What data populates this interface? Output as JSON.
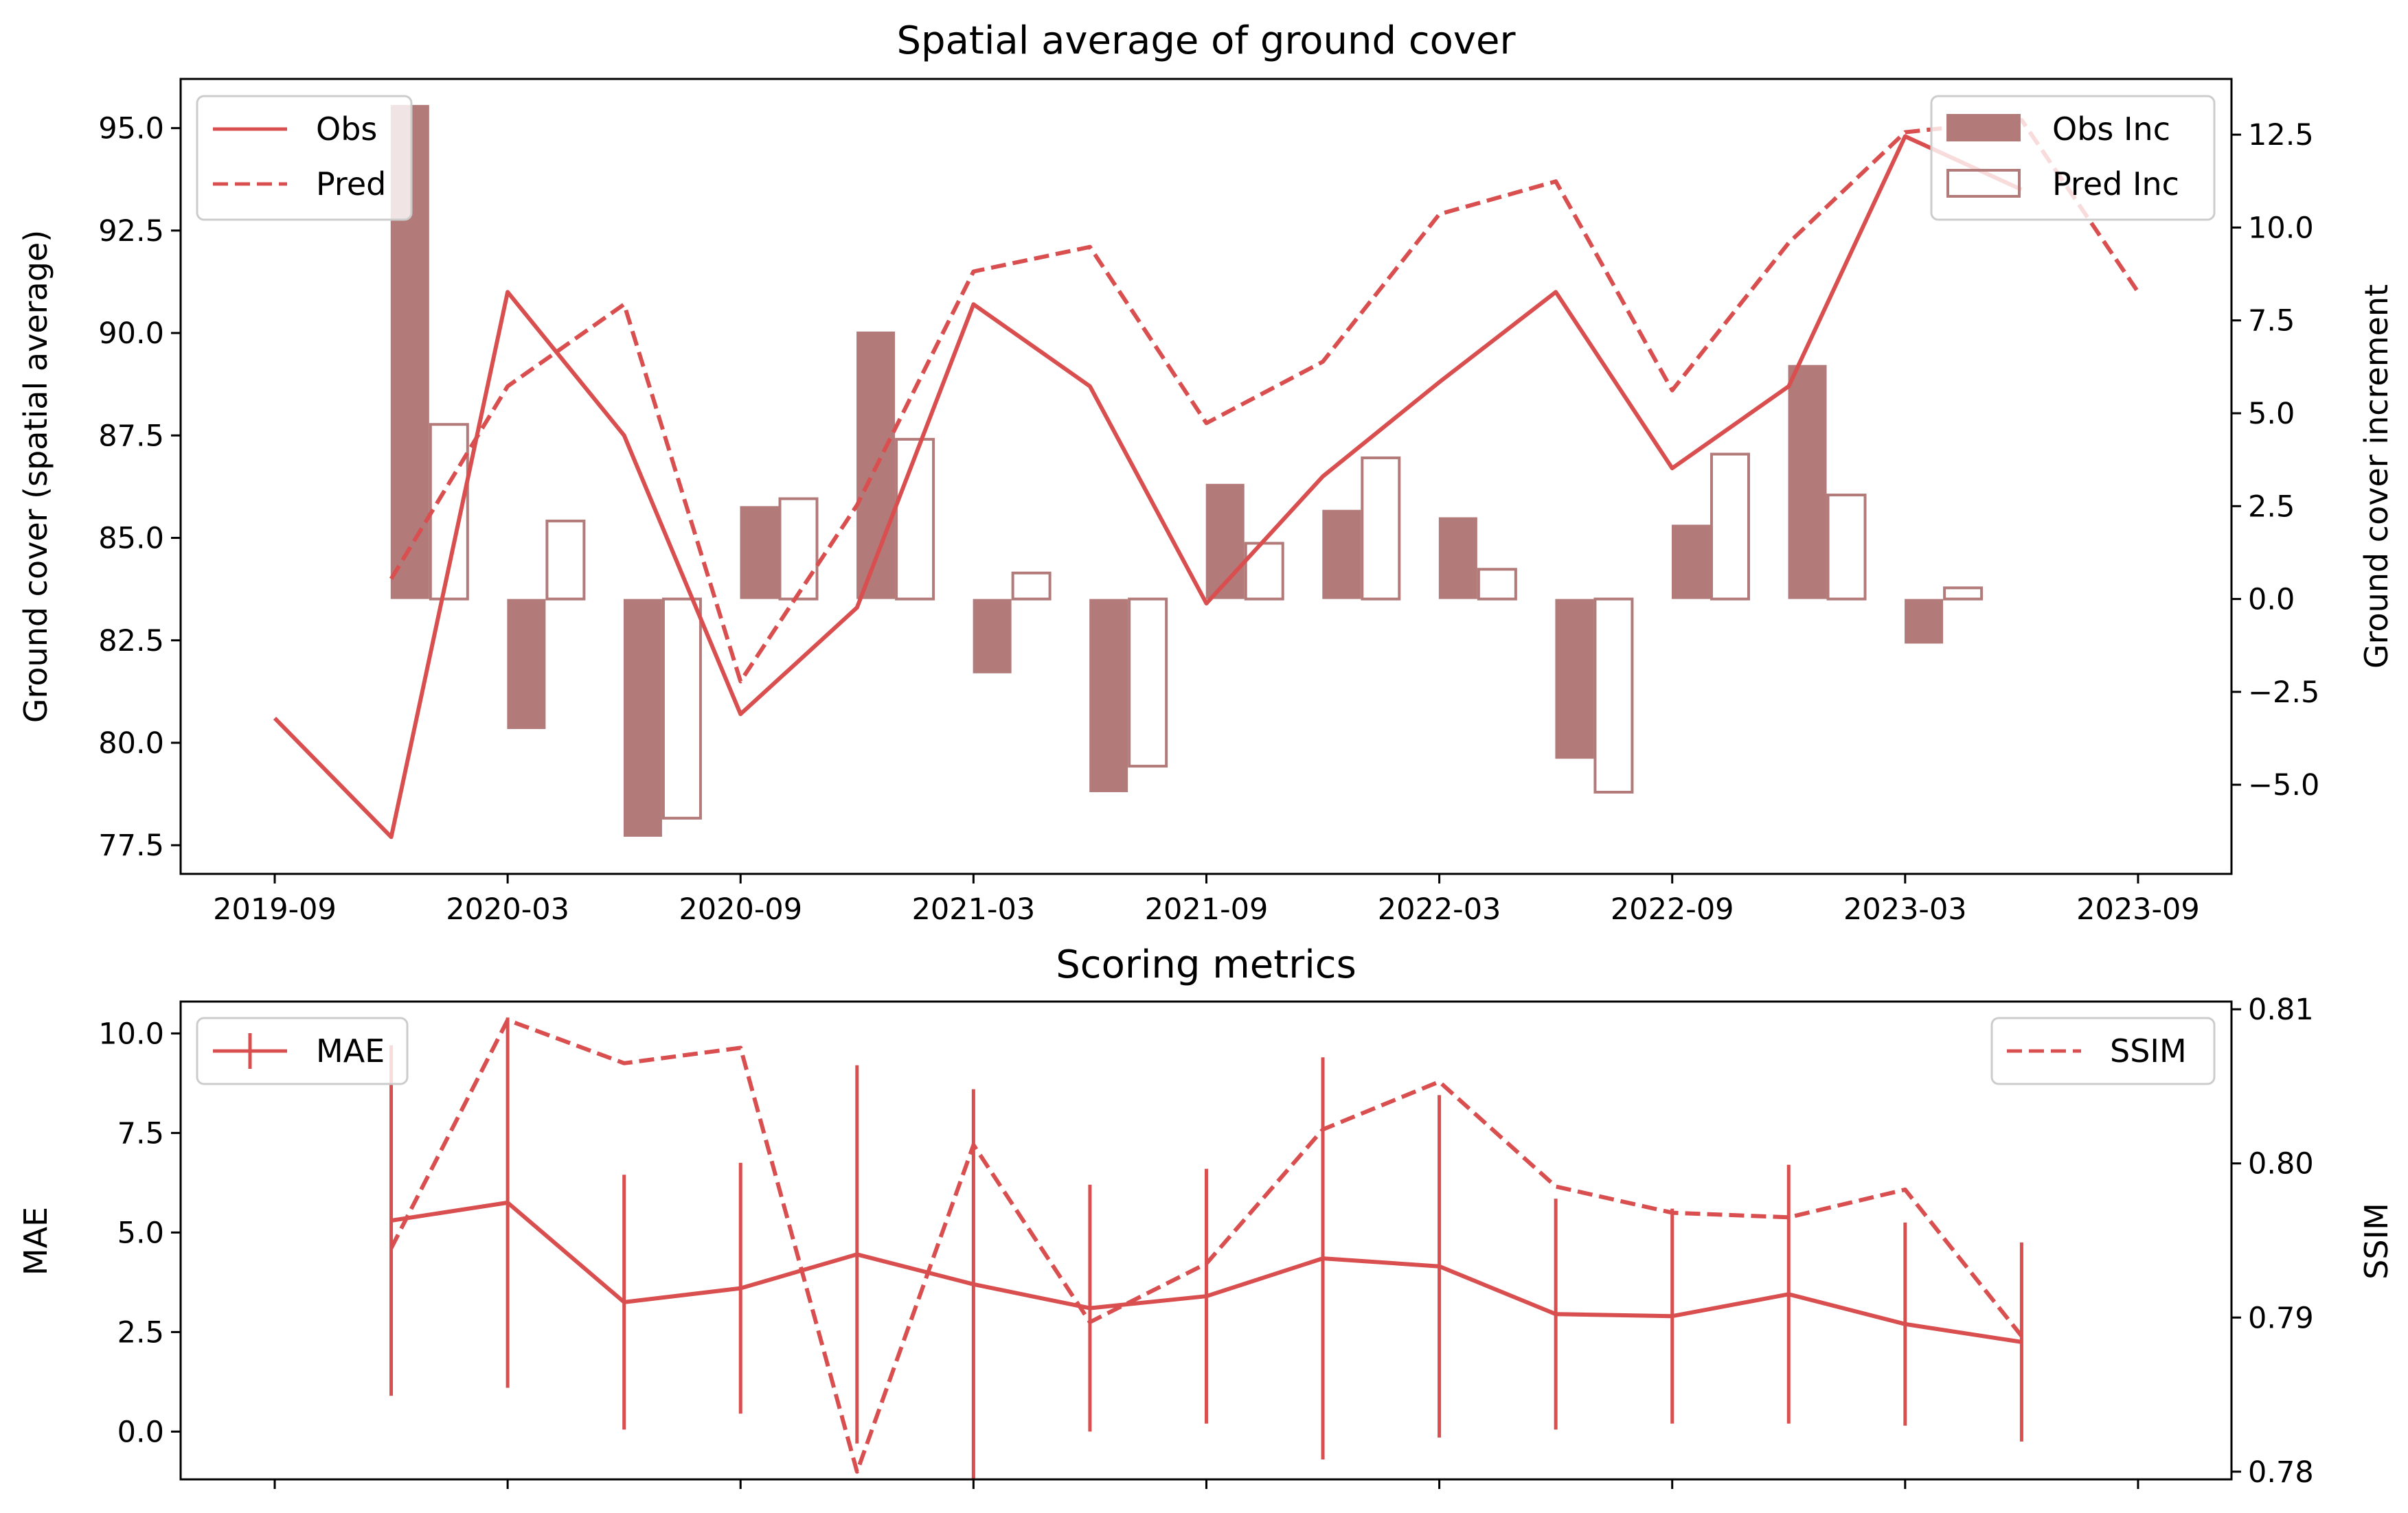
{
  "colors": {
    "line": "#d94f4f",
    "bar": "#b37a7a",
    "axis": "#000000",
    "background": "#ffffff"
  },
  "chart_data": [
    {
      "type": "bar+line",
      "title": "Spatial average of ground cover",
      "ylabel": "Ground cover (spatial average)",
      "y2label": "Ground cover increment",
      "x_tick_labels": [
        "2019-09",
        "2020-03",
        "2020-09",
        "2021-03",
        "2021-09",
        "2022-03",
        "2022-09",
        "2023-03",
        "2023-09"
      ],
      "y_ticks": [
        "77.5",
        "80.0",
        "82.5",
        "85.0",
        "87.5",
        "90.0",
        "92.5",
        "95.0"
      ],
      "y2_ticks": [
        "−5.0",
        "−2.5",
        "0.0",
        "2.5",
        "5.0",
        "7.5",
        "10.0",
        "12.5"
      ],
      "ylim": [
        76.8,
        96.2
      ],
      "y2lim": [
        -7.4,
        14.0
      ],
      "x_dates": [
        "2019-09",
        "2019-12",
        "2020-03",
        "2020-06",
        "2020-09",
        "2020-12",
        "2021-03",
        "2021-06",
        "2021-09",
        "2021-12",
        "2022-03",
        "2022-06",
        "2022-09",
        "2022-12",
        "2023-03",
        "2023-06",
        "2023-09"
      ],
      "lines": [
        {
          "name": "Obs",
          "style": "solid",
          "values": [
            80.6,
            77.7,
            91.0,
            87.5,
            80.7,
            83.3,
            90.7,
            88.7,
            83.4,
            86.5,
            88.8,
            91.0,
            86.7,
            88.7,
            94.8,
            93.5,
            null
          ]
        },
        {
          "name": "Pred",
          "style": "dashed",
          "values": [
            null,
            84.0,
            88.7,
            90.7,
            81.5,
            85.8,
            91.5,
            92.1,
            87.8,
            89.3,
            92.9,
            93.7,
            88.6,
            92.2,
            94.9,
            95.2,
            91.0
          ]
        }
      ],
      "bars": [
        {
          "name": "Obs Inc",
          "style": "filled",
          "values": [
            13.3,
            -3.5,
            -6.4,
            2.5,
            7.2,
            -2.0,
            -5.2,
            3.1,
            2.4,
            2.2,
            -4.3,
            2.0,
            6.3,
            -1.2
          ]
        },
        {
          "name": "Pred Inc",
          "style": "hollow",
          "values": [
            4.7,
            2.1,
            -5.9,
            2.7,
            4.3,
            0.7,
            -4.5,
            1.5,
            3.8,
            0.8,
            -5.2,
            3.9,
            2.8,
            0.3
          ]
        }
      ],
      "legend_left": [
        "Obs",
        "Pred"
      ],
      "legend_right": [
        "Obs Inc",
        "Pred Inc"
      ]
    },
    {
      "type": "line+errorbar",
      "title": "Scoring metrics",
      "ylabel": "MAE",
      "y2label": "SSIM",
      "y_ticks": [
        "0.0",
        "2.5",
        "5.0",
        "7.5",
        "10.0"
      ],
      "y2_ticks": [
        "0.78",
        "0.79",
        "0.80",
        "0.81"
      ],
      "ylim": [
        -1.2,
        10.8
      ],
      "y2lim": [
        0.7795,
        0.8105
      ],
      "x_dates": [
        "2019-12",
        "2020-03",
        "2020-06",
        "2020-09",
        "2020-12",
        "2021-03",
        "2021-06",
        "2021-09",
        "2021-12",
        "2022-03",
        "2022-06",
        "2022-09",
        "2022-12",
        "2023-03",
        "2023-06"
      ],
      "mae": [
        5.3,
        5.75,
        3.25,
        3.6,
        4.45,
        3.7,
        3.1,
        3.4,
        4.35,
        4.15,
        2.95,
        2.9,
        3.45,
        2.7,
        2.25
      ],
      "mae_err": [
        4.4,
        4.65,
        3.2,
        3.15,
        4.75,
        4.9,
        3.1,
        3.2,
        5.05,
        4.3,
        2.9,
        2.7,
        3.25,
        2.55,
        2.5
      ],
      "ssim": [
        0.7945,
        0.8093,
        0.8065,
        0.8075,
        0.78,
        0.8012,
        0.7897,
        0.7935,
        0.8022,
        0.8053,
        0.7985,
        0.7968,
        0.7965,
        0.7983,
        0.7888
      ],
      "legend_left": [
        "MAE"
      ],
      "legend_right": [
        "SSIM"
      ]
    }
  ]
}
